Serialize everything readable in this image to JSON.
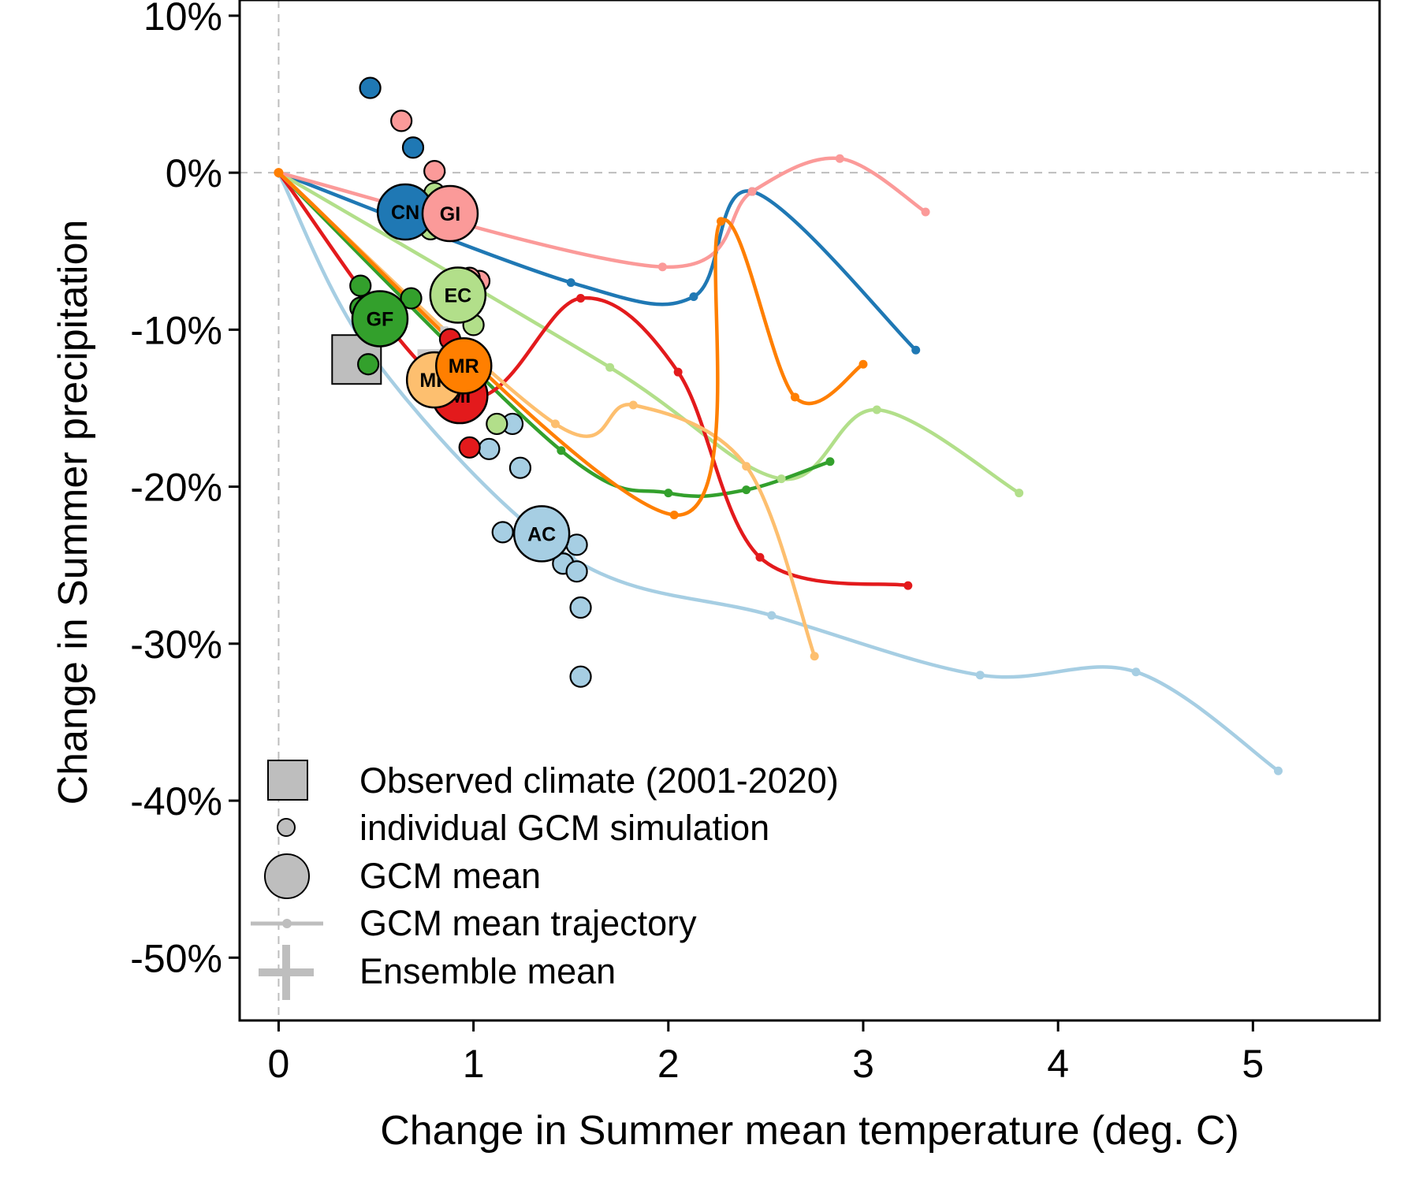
{
  "chart_data": {
    "type": "scatter",
    "title": "",
    "xlabel": "Change in Summer mean temperature (deg. C)",
    "ylabel": "Change in Summer precipitation",
    "xlim": [
      -0.2,
      5.65
    ],
    "ylim": [
      -54,
      11
    ],
    "x_ticks": [
      0,
      1,
      2,
      3,
      4,
      5
    ],
    "y_ticks": [
      10,
      0,
      -10,
      -20,
      -30,
      -40,
      -50
    ],
    "x_tick_labels": [
      "0",
      "1",
      "2",
      "3",
      "4",
      "5"
    ],
    "y_tick_labels": [
      "10%",
      "0%",
      "-10%",
      "-20%",
      "-30%",
      "-40%",
      "-50%"
    ],
    "reference_lines": {
      "x": 0,
      "y": 0
    },
    "observed": {
      "x": 0.4,
      "y": -11.9,
      "color": "#bebebe"
    },
    "ensemble_mean": {
      "x": 0.85,
      "y": -11.5,
      "color": "#cccccc"
    },
    "models": [
      {
        "code": "AC",
        "color": "#a6cee3",
        "mean": {
          "x": 1.35,
          "y": -23.0
        },
        "sims": [
          [
            1.08,
            -17.6
          ],
          [
            1.24,
            -18.8
          ],
          [
            1.15,
            -22.9
          ],
          [
            1.46,
            -24.9
          ],
          [
            1.53,
            -25.4
          ],
          [
            1.53,
            -23.7
          ],
          [
            1.55,
            -27.7
          ],
          [
            1.55,
            -32.1
          ],
          [
            1.2,
            -16.0
          ]
        ],
        "trajectory": [
          [
            0,
            0
          ],
          [
            0.5,
            -12.0
          ],
          [
            1.5,
            -24.5
          ],
          [
            2.53,
            -28.2
          ],
          [
            3.6,
            -32.0
          ],
          [
            4.4,
            -31.8
          ],
          [
            5.13,
            -38.1
          ]
        ]
      },
      {
        "code": "CN",
        "color": "#1f78b4",
        "mean": {
          "x": 0.65,
          "y": -2.5
        },
        "sims": [
          [
            0.47,
            5.4
          ],
          [
            0.69,
            1.6
          ],
          [
            0.62,
            -2.8
          ]
        ],
        "trajectory": [
          [
            0,
            0
          ],
          [
            1.5,
            -7.0
          ],
          [
            2.13,
            -7.9
          ],
          [
            2.43,
            -1.2
          ],
          [
            3.27,
            -11.3
          ]
        ]
      },
      {
        "code": "EC",
        "color": "#b2df8a",
        "mean": {
          "x": 0.92,
          "y": -7.8
        },
        "sims": [
          [
            0.8,
            -1.3
          ],
          [
            0.8,
            -3.0
          ],
          [
            1.0,
            -9.7
          ],
          [
            1.12,
            -16.0
          ],
          [
            0.78,
            -3.6
          ]
        ],
        "trajectory": [
          [
            0,
            0
          ],
          [
            1.7,
            -12.4
          ],
          [
            2.58,
            -19.5
          ],
          [
            3.07,
            -15.1
          ],
          [
            3.8,
            -20.4
          ]
        ]
      },
      {
        "code": "GF",
        "color": "#33a02c",
        "mean": {
          "x": 0.52,
          "y": -9.3
        },
        "sims": [
          [
            0.42,
            -7.2
          ],
          [
            0.68,
            -8.0
          ],
          [
            0.46,
            -12.2
          ],
          [
            0.42,
            -8.6
          ]
        ],
        "trajectory": [
          [
            0,
            0
          ],
          [
            1.45,
            -17.7
          ],
          [
            2.0,
            -20.4
          ],
          [
            2.4,
            -20.2
          ],
          [
            2.83,
            -18.4
          ]
        ]
      },
      {
        "code": "GI",
        "color": "#fb9a99",
        "mean": {
          "x": 0.88,
          "y": -2.6
        },
        "sims": [
          [
            0.63,
            3.3
          ],
          [
            0.8,
            0.1
          ],
          [
            1.03,
            -6.9
          ],
          [
            0.98,
            -6.7
          ]
        ],
        "trajectory": [
          [
            0,
            0
          ],
          [
            1.97,
            -6.0
          ],
          [
            2.43,
            -1.2
          ],
          [
            2.88,
            0.9
          ],
          [
            3.32,
            -2.5
          ]
        ]
      },
      {
        "code": "MI",
        "color": "#e31a1c",
        "mean": {
          "x": 0.93,
          "y": -14.2
        },
        "sims": [
          [
            0.88,
            -10.6
          ],
          [
            0.98,
            -17.5
          ],
          [
            0.9,
            -12.0
          ]
        ],
        "trajectory": [
          [
            0,
            0
          ],
          [
            0.93,
            -14.2
          ],
          [
            1.55,
            -8.0
          ],
          [
            2.05,
            -12.7
          ],
          [
            2.47,
            -24.5
          ],
          [
            3.23,
            -26.3
          ]
        ]
      },
      {
        "code": "MP",
        "color": "#fdbf6f",
        "mean": {
          "x": 0.8,
          "y": -13.2
        },
        "sims": [],
        "trajectory": [
          [
            0,
            0
          ],
          [
            1.42,
            -16.0
          ],
          [
            1.82,
            -14.8
          ],
          [
            2.4,
            -18.7
          ],
          [
            2.75,
            -30.8
          ]
        ]
      },
      {
        "code": "MR",
        "color": "#ff7f00",
        "mean": {
          "x": 0.95,
          "y": -12.3
        },
        "sims": [],
        "trajectory": [
          [
            0,
            0
          ],
          [
            2.03,
            -21.8
          ],
          [
            2.27,
            -3.1
          ],
          [
            2.65,
            -14.3
          ],
          [
            3.0,
            -12.2
          ]
        ]
      }
    ],
    "legend": {
      "position": "bottom-left",
      "entries": [
        "Observed climate (2001-2020)",
        "individual GCM simulation",
        "GCM mean",
        "GCM mean trajectory",
        "Ensemble mean"
      ]
    }
  }
}
